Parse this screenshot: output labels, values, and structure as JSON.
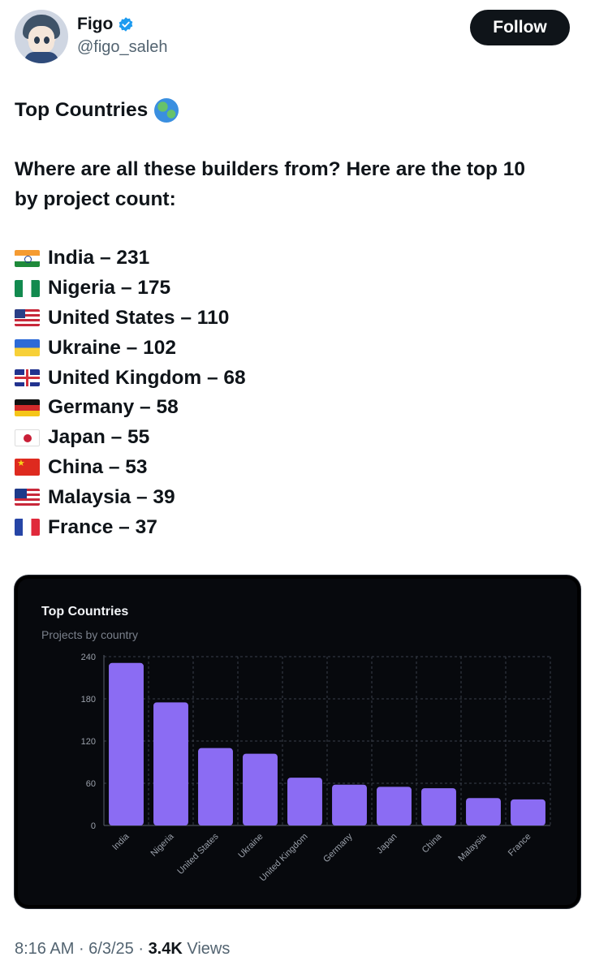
{
  "author": {
    "name": "Figo",
    "handle": "@figo_saleh",
    "verified": true,
    "follow_label": "Follow"
  },
  "post": {
    "title": "Top Countries",
    "intro_line1": "Where are all these builders from? Here are the top 10",
    "intro_line2": "by project count:",
    "countries": [
      {
        "flag": "india-flag",
        "text": "India – 231"
      },
      {
        "flag": "nigeria-flag",
        "text": "Nigeria – 175"
      },
      {
        "flag": "united-states-flag",
        "text": "United States – 110"
      },
      {
        "flag": "ukraine-flag",
        "text": "Ukraine – 102"
      },
      {
        "flag": "united-kingdom-flag",
        "text": "United Kingdom – 68"
      },
      {
        "flag": "germany-flag",
        "text": "Germany – 58"
      },
      {
        "flag": "japan-flag",
        "text": "Japan – 55"
      },
      {
        "flag": "china-flag",
        "text": "China – 53"
      },
      {
        "flag": "malaysia-flag",
        "text": "Malaysia – 39"
      },
      {
        "flag": "france-flag",
        "text": "France – 37"
      }
    ]
  },
  "chart_data": {
    "type": "bar",
    "title": "Top Countries",
    "subtitle": "Projects by country",
    "categories": [
      "India",
      "Nigeria",
      "United States",
      "Ukraine",
      "United Kingdom",
      "Germany",
      "Japan",
      "China",
      "Malaysia",
      "France"
    ],
    "values": [
      231,
      175,
      110,
      102,
      68,
      58,
      55,
      53,
      39,
      37
    ],
    "yticks": [
      0,
      60,
      120,
      180,
      240
    ],
    "ylim": [
      0,
      240
    ],
    "grid": true,
    "colors": {
      "bar": "#8b6cf3",
      "background": "#07090d",
      "grid": "#3a3f4a",
      "tick": "#9aa0aa"
    }
  },
  "footer": {
    "time": "8:16 AM",
    "date": "6/3/25",
    "views_count": "3.4K",
    "views_label": "Views"
  }
}
